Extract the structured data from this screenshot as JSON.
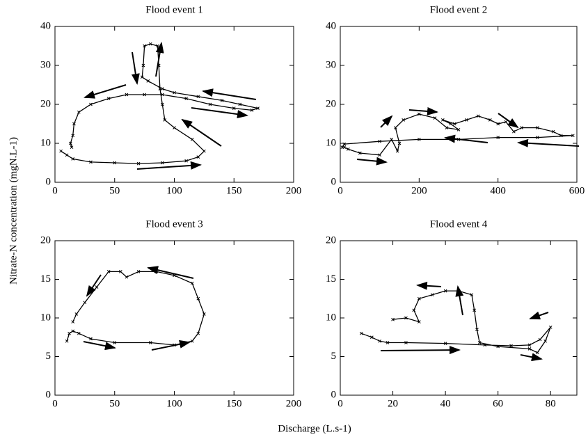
{
  "ylabel": "Nitrate-N concentration (mgN.L-1)",
  "xlabel": "Discharge (L.s-1)",
  "chart_data": [
    {
      "type": "line",
      "title": "Flood event 1",
      "color": "#000000",
      "x": [
        5,
        10,
        15,
        30,
        50,
        70,
        90,
        110,
        120,
        125,
        115,
        100,
        92,
        90,
        88,
        87,
        86,
        80,
        75,
        74,
        73,
        78,
        90,
        100,
        120,
        140,
        155,
        170,
        165,
        150,
        130,
        110,
        90,
        75,
        60,
        45,
        30,
        20,
        16,
        15,
        13,
        14
      ],
      "values": [
        8,
        7,
        6,
        5.2,
        5,
        4.8,
        5,
        5.5,
        6.5,
        8,
        11,
        14,
        16,
        20,
        24,
        30,
        35,
        35.5,
        35,
        30,
        27,
        26,
        24,
        23,
        22,
        21,
        20,
        19,
        18.5,
        19,
        20,
        21.5,
        22.5,
        22.5,
        22.5,
        21.5,
        20,
        18,
        15,
        12,
        10,
        9
      ],
      "xlim": [
        0,
        200
      ],
      "xticks": [
        0,
        50,
        100,
        150,
        200
      ],
      "ylim": [
        0,
        40
      ],
      "yticks": [
        0,
        10,
        20,
        30,
        40
      ]
    },
    {
      "type": "line",
      "title": "Flood event 2",
      "color": "#000000",
      "x": [
        10,
        20,
        50,
        100,
        130,
        145,
        150,
        140,
        160,
        200,
        240,
        270,
        300,
        280,
        260,
        290,
        320,
        350,
        380,
        400,
        420,
        440,
        460,
        500,
        540,
        560,
        590,
        500,
        400,
        300,
        200,
        100,
        10,
        5
      ],
      "values": [
        9,
        8.5,
        7.5,
        7,
        11,
        8,
        10,
        14,
        16,
        17.5,
        16.5,
        14,
        13.5,
        15,
        16,
        15,
        16,
        17,
        16,
        15,
        15.5,
        13,
        14,
        14,
        13,
        12,
        12,
        11.5,
        11.5,
        11,
        11,
        10.5,
        9.8,
        9
      ],
      "xlim": [
        0,
        600
      ],
      "xticks": [
        0,
        200,
        400,
        600
      ],
      "ylim": [
        0,
        40
      ],
      "yticks": [
        0,
        10,
        20,
        30,
        40
      ]
    },
    {
      "type": "line",
      "title": "Flood event 3",
      "color": "#000000",
      "x": [
        10,
        12,
        15,
        20,
        30,
        50,
        80,
        100,
        115,
        120,
        125,
        120,
        115,
        100,
        85,
        70,
        60,
        55,
        45,
        35,
        25,
        18,
        15
      ],
      "values": [
        7,
        8,
        8.3,
        8,
        7.3,
        6.8,
        6.8,
        6.5,
        7,
        8,
        10.5,
        12.5,
        14.5,
        15.5,
        16,
        16,
        15.3,
        16,
        16,
        14,
        12,
        10.5,
        9.5
      ],
      "xlim": [
        0,
        200
      ],
      "xticks": [
        0,
        50,
        100,
        150,
        200
      ],
      "ylim": [
        0,
        20
      ],
      "yticks": [
        0,
        5,
        10,
        15,
        20
      ]
    },
    {
      "type": "line",
      "title": "Flood event 4",
      "color": "#000000",
      "x": [
        8,
        12,
        15,
        18,
        25,
        40,
        55,
        65,
        72,
        76,
        80,
        78,
        75,
        72,
        60,
        53,
        52,
        51,
        50,
        45,
        40,
        35,
        30,
        28,
        30,
        25,
        20
      ],
      "values": [
        8,
        7.5,
        7,
        6.8,
        6.8,
        6.7,
        6.5,
        6.4,
        6.5,
        7.2,
        8.8,
        7,
        5.5,
        6,
        6.3,
        6.8,
        8.5,
        11,
        13,
        13.5,
        13.5,
        13,
        12.5,
        11,
        9.5,
        10,
        9.8
      ],
      "xlim": [
        0,
        90
      ],
      "xticks": [
        0,
        20,
        40,
        60,
        80
      ],
      "ylim": [
        0,
        20
      ],
      "yticks": [
        0,
        5,
        10,
        15,
        20
      ]
    }
  ]
}
